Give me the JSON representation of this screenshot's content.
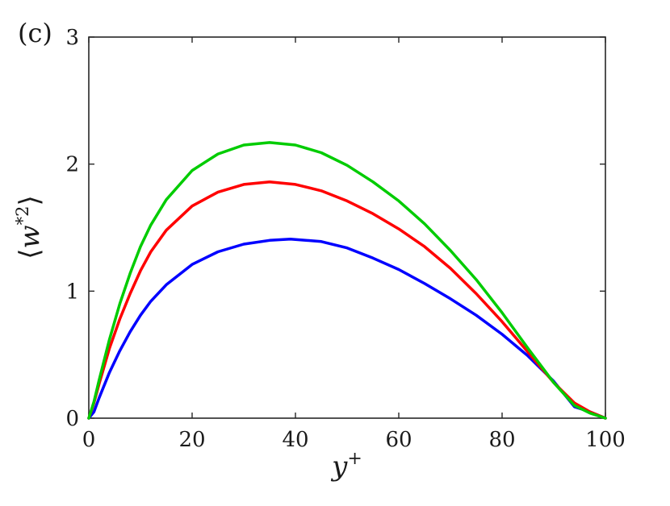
{
  "panel_label": "(c)",
  "chart_data": {
    "type": "line",
    "xlabel": "y+",
    "xlabel_base": "y",
    "xlabel_sup": "+",
    "ylabel": "⟨w*2⟩",
    "ylabel_open": "⟨",
    "ylabel_base": "w",
    "ylabel_sup": "*2",
    "ylabel_close": "⟩",
    "xlim": [
      0,
      100
    ],
    "ylim": [
      0,
      3
    ],
    "xticks": [
      0,
      20,
      40,
      60,
      80,
      100
    ],
    "yticks": [
      0,
      1,
      2,
      3
    ],
    "xtick_labels": [
      "0",
      "20",
      "40",
      "60",
      "80",
      "100"
    ],
    "ytick_labels": [
      "0",
      "1",
      "2",
      "3"
    ],
    "grid": false,
    "series": [
      {
        "color": "#0000ff",
        "x": [
          0,
          1,
          2,
          4,
          6,
          8,
          10,
          12,
          15,
          20,
          25,
          30,
          35,
          39,
          45,
          50,
          55,
          60,
          65,
          70,
          75,
          80,
          85,
          90,
          94,
          97,
          100
        ],
        "y": [
          0,
          0.05,
          0.16,
          0.36,
          0.53,
          0.68,
          0.81,
          0.92,
          1.05,
          1.21,
          1.31,
          1.37,
          1.4,
          1.41,
          1.39,
          1.34,
          1.26,
          1.17,
          1.06,
          0.94,
          0.81,
          0.66,
          0.49,
          0.29,
          0.09,
          0.05,
          0.0
        ]
      },
      {
        "color": "#ff0000",
        "x": [
          0,
          1,
          2,
          4,
          6,
          8,
          10,
          12,
          15,
          20,
          25,
          30,
          35,
          40,
          45,
          50,
          55,
          60,
          65,
          70,
          75,
          80,
          85,
          90,
          94,
          97,
          100
        ],
        "y": [
          0,
          0.12,
          0.27,
          0.55,
          0.78,
          0.98,
          1.16,
          1.31,
          1.48,
          1.67,
          1.78,
          1.84,
          1.86,
          1.84,
          1.79,
          1.71,
          1.61,
          1.49,
          1.35,
          1.18,
          0.98,
          0.76,
          0.52,
          0.28,
          0.12,
          0.05,
          0.0
        ]
      },
      {
        "color": "#00cc00",
        "x": [
          0,
          1,
          2,
          4,
          6,
          8,
          10,
          12,
          15,
          20,
          25,
          30,
          35,
          40,
          45,
          50,
          55,
          60,
          65,
          70,
          75,
          80,
          85,
          90,
          94,
          97,
          100
        ],
        "y": [
          0,
          0.13,
          0.3,
          0.62,
          0.9,
          1.14,
          1.35,
          1.52,
          1.72,
          1.95,
          2.08,
          2.15,
          2.17,
          2.15,
          2.09,
          1.99,
          1.86,
          1.71,
          1.53,
          1.32,
          1.09,
          0.83,
          0.55,
          0.28,
          0.1,
          0.04,
          0.0
        ]
      }
    ]
  }
}
